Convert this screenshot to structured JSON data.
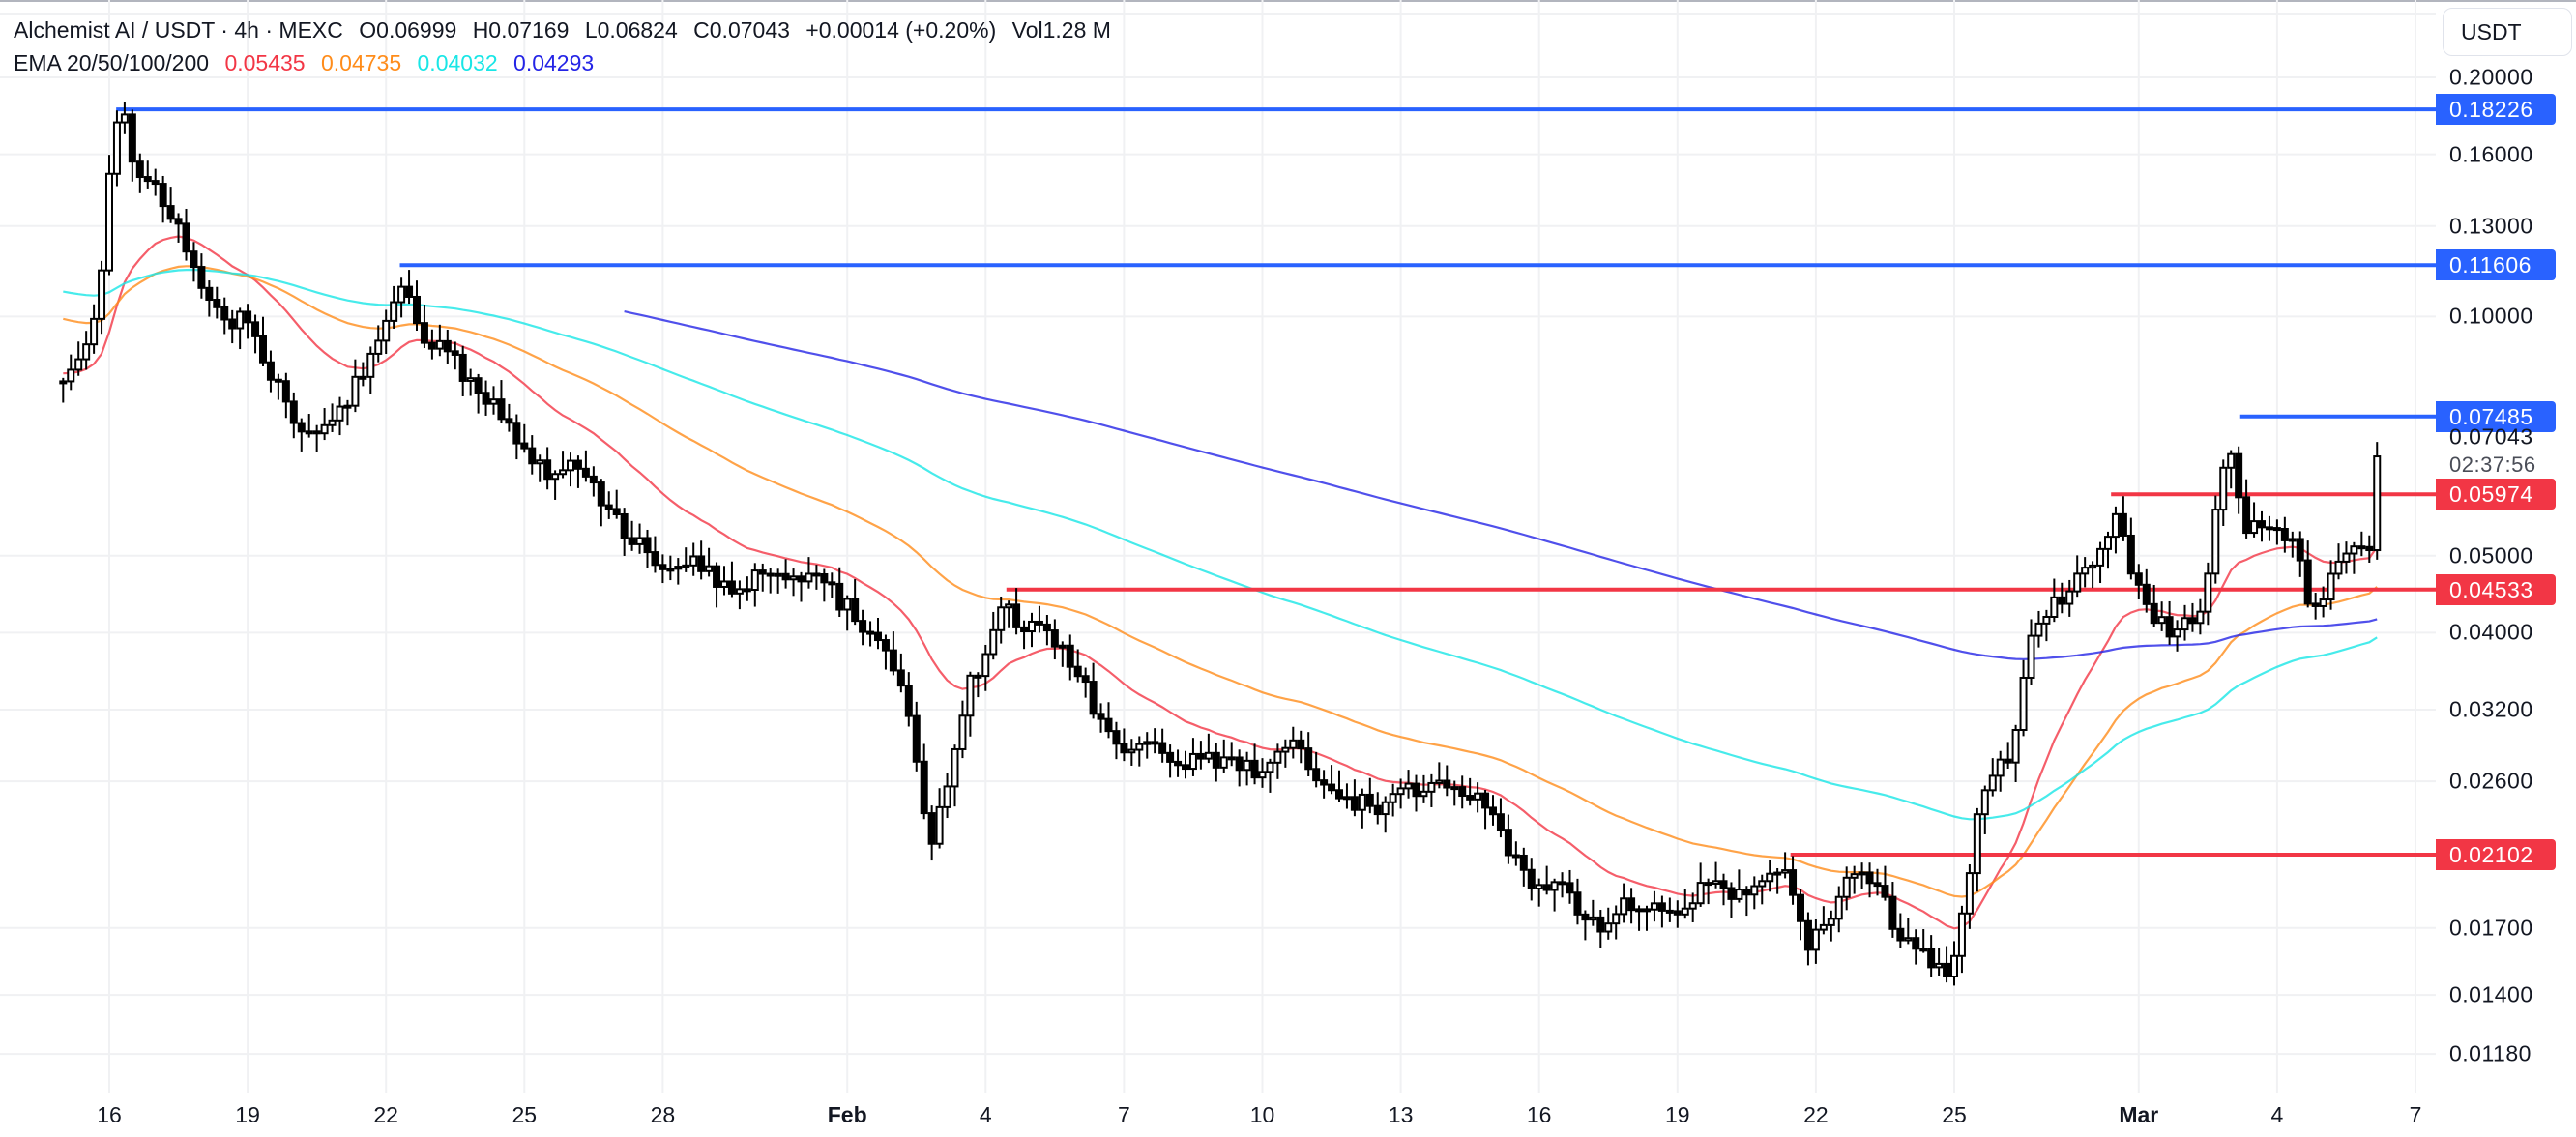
{
  "header": {
    "symbol": "Alchemist AI / USDT",
    "interval": "4h",
    "exchange": "MEXC",
    "open": "O0.06999",
    "high": "H0.07169",
    "low": "L0.06824",
    "close": "C0.07043",
    "change": "+0.00014 (+0.20%)",
    "volume": "Vol1.28 M"
  },
  "ema": {
    "label": "EMA 20/50/100/200",
    "values": [
      {
        "period": 20,
        "value": "0.05435",
        "color": "#f23645"
      },
      {
        "period": 50,
        "value": "0.04735",
        "color": "#ff8c1a"
      },
      {
        "period": 100,
        "value": "0.04032",
        "color": "#19e6e6"
      },
      {
        "period": 200,
        "value": "0.04293",
        "color": "#2424e6"
      }
    ]
  },
  "currency_button": "USDT",
  "price_axis": {
    "ticks": [
      "0.20000",
      "0.16000",
      "0.13000",
      "0.10000",
      "0.05000",
      "0.04000",
      "0.03200",
      "0.02600",
      "0.01700",
      "0.01400",
      "0.01180"
    ],
    "current_price": "0.07043",
    "countdown": "02:37:56"
  },
  "levels": [
    {
      "price": "0.18226",
      "color": "#2962ff",
      "start_date": "Jan 16"
    },
    {
      "price": "0.11606",
      "color": "#2962ff",
      "start_date": "Jan 22"
    },
    {
      "price": "0.07485",
      "color": "#2962ff",
      "start_date": "Mar 3"
    },
    {
      "price": "0.05974",
      "color": "#f23645",
      "start_date": "Feb 28"
    },
    {
      "price": "0.04533",
      "color": "#f23645",
      "start_date": "Feb 4"
    },
    {
      "price": "0.02102",
      "color": "#f23645",
      "start_date": "Feb 21"
    }
  ],
  "time_axis": {
    "labels": [
      {
        "text": "16",
        "bold": false
      },
      {
        "text": "19",
        "bold": false
      },
      {
        "text": "22",
        "bold": false
      },
      {
        "text": "25",
        "bold": false
      },
      {
        "text": "28",
        "bold": false
      },
      {
        "text": "Feb",
        "bold": true
      },
      {
        "text": "4",
        "bold": false
      },
      {
        "text": "7",
        "bold": false
      },
      {
        "text": "10",
        "bold": false
      },
      {
        "text": "13",
        "bold": false
      },
      {
        "text": "16",
        "bold": false
      },
      {
        "text": "19",
        "bold": false
      },
      {
        "text": "22",
        "bold": false
      },
      {
        "text": "25",
        "bold": false
      },
      {
        "text": "Mar",
        "bold": true
      },
      {
        "text": "4",
        "bold": false
      },
      {
        "text": "7",
        "bold": false
      }
    ]
  },
  "chart_data": {
    "type": "candlestick",
    "title": "Alchemist AI / USDT · 4h · MEXC",
    "xlabel": "",
    "ylabel": "USDT",
    "y_scale": "log",
    "ylim": [
      0.0112,
      0.212
    ],
    "x_ticks": [
      "Jan 16",
      "Jan 19",
      "Jan 22",
      "Jan 25",
      "Jan 28",
      "Feb 1",
      "Feb 4",
      "Feb 7",
      "Feb 10",
      "Feb 13",
      "Feb 16",
      "Feb 19",
      "Feb 22",
      "Feb 25",
      "Mar 1",
      "Mar 4",
      "Mar 7"
    ],
    "grid": true,
    "close_path": [
      [
        "Jan 15.0",
        0.085
      ],
      [
        "Jan 15.5",
        0.091
      ],
      [
        "Jan 15.8",
        0.112
      ],
      [
        "Jan 16.1",
        0.168
      ],
      [
        "Jan 16.3",
        0.178
      ],
      [
        "Jan 16.6",
        0.15
      ],
      [
        "Jan 17.2",
        0.14
      ],
      [
        "Jan 17.8",
        0.12
      ],
      [
        "Jan 18.3",
        0.1
      ],
      [
        "Jan 19.0",
        0.098
      ],
      [
        "Jan 19.5",
        0.085
      ],
      [
        "Jan 20.0",
        0.074
      ],
      [
        "Jan 20.6",
        0.072
      ],
      [
        "Jan 21.2",
        0.08
      ],
      [
        "Jan 22.0",
        0.098
      ],
      [
        "Jan 22.4",
        0.114
      ],
      [
        "Jan 22.7",
        0.096
      ],
      [
        "Jan 23.3",
        0.09
      ],
      [
        "Jan 24.0",
        0.081
      ],
      [
        "Jan 24.6",
        0.074
      ],
      [
        "Jan 25.3",
        0.064
      ],
      [
        "Jan 26.0",
        0.064
      ],
      [
        "Jan 26.6",
        0.06
      ],
      [
        "Jan 27.3",
        0.052
      ],
      [
        "Jan 28.0",
        0.049
      ],
      [
        "Jan 28.6",
        0.05
      ],
      [
        "Jan 29.3",
        0.045
      ],
      [
        "Jan 30.0",
        0.047
      ],
      [
        "Jan 30.6",
        0.046
      ],
      [
        "Jan 31.3",
        0.047
      ],
      [
        "Feb 1.0",
        0.043
      ],
      [
        "Feb 1.6",
        0.039
      ],
      [
        "Feb 2.0",
        0.036
      ],
      [
        "Feb 2.4",
        0.03
      ],
      [
        "Feb 2.8",
        0.022
      ],
      [
        "Feb 3.2",
        0.026
      ],
      [
        "Feb 3.6",
        0.034
      ],
      [
        "Feb 4.0",
        0.038
      ],
      [
        "Feb 4.4",
        0.043
      ],
      [
        "Feb 4.8",
        0.041
      ],
      [
        "Feb 5.4",
        0.04
      ],
      [
        "Feb 5.9",
        0.036
      ],
      [
        "Feb 6.4",
        0.032
      ],
      [
        "Feb 7.0",
        0.028
      ],
      [
        "Feb 7.6",
        0.029
      ],
      [
        "Feb 8.2",
        0.027
      ],
      [
        "Feb 8.8",
        0.028
      ],
      [
        "Feb 9.4",
        0.027
      ],
      [
        "Feb 10.0",
        0.027
      ],
      [
        "Feb 10.6",
        0.029
      ],
      [
        "Feb 11.2",
        0.026
      ],
      [
        "Feb 11.8",
        0.025
      ],
      [
        "Feb 12.4",
        0.024
      ],
      [
        "Feb 13.0",
        0.026
      ],
      [
        "Feb 13.6",
        0.025
      ],
      [
        "Feb 14.2",
        0.026
      ],
      [
        "Feb 14.8",
        0.024
      ],
      [
        "Feb 15.4",
        0.021
      ],
      [
        "Feb 16.0",
        0.019
      ],
      [
        "Feb 16.6",
        0.019
      ],
      [
        "Feb 17.2",
        0.017
      ],
      [
        "Feb 17.8",
        0.018
      ],
      [
        "Feb 18.4",
        0.018
      ],
      [
        "Feb 19.0",
        0.018
      ],
      [
        "Feb 19.6",
        0.019
      ],
      [
        "Feb 20.2",
        0.019
      ],
      [
        "Feb 20.8",
        0.019
      ],
      [
        "Feb 21.4",
        0.02
      ],
      [
        "Feb 21.8",
        0.016
      ],
      [
        "Feb 22.2",
        0.017
      ],
      [
        "Feb 22.6",
        0.0195
      ],
      [
        "Feb 23.0",
        0.02
      ],
      [
        "Feb 23.4",
        0.019
      ],
      [
        "Feb 23.8",
        0.0165
      ],
      [
        "Feb 24.2",
        0.016
      ],
      [
        "Feb 24.6",
        0.015
      ],
      [
        "Feb 24.9",
        0.0145
      ],
      [
        "Feb 25.2",
        0.018
      ],
      [
        "Feb 25.5",
        0.023
      ],
      [
        "Feb 25.8",
        0.026
      ],
      [
        "Feb 26.2",
        0.028
      ],
      [
        "Feb 26.6",
        0.038
      ],
      [
        "Feb 27.0",
        0.042
      ],
      [
        "Feb 27.4",
        0.045
      ],
      [
        "Feb 27.8",
        0.047
      ],
      [
        "Feb 28.2",
        0.052
      ],
      [
        "Feb 28.5",
        0.057
      ],
      [
        "Feb 28.8",
        0.048
      ],
      [
        "Mar 1.2",
        0.043
      ],
      [
        "Mar 1.6",
        0.04
      ],
      [
        "Mar 2.0",
        0.041
      ],
      [
        "Mar 2.4",
        0.043
      ],
      [
        "Mar 2.7",
        0.06
      ],
      [
        "Mar 3.0",
        0.068
      ],
      [
        "Mar 3.3",
        0.055
      ],
      [
        "Mar 3.7",
        0.053
      ],
      [
        "Mar 4.0",
        0.054
      ],
      [
        "Mar 4.4",
        0.052
      ],
      [
        "Mar 4.7",
        0.044
      ],
      [
        "Mar 5.0",
        0.045
      ],
      [
        "Mar 5.3",
        0.05
      ],
      [
        "Mar 5.7",
        0.05
      ],
      [
        "Mar 6.0",
        0.052
      ],
      [
        "Mar 6.2",
        0.0704
      ]
    ],
    "ema_series": [
      {
        "name": "EMA 20",
        "color": "#f23645",
        "last": 0.05435
      },
      {
        "name": "EMA 50",
        "color": "#ff8c1a",
        "last": 0.04735
      },
      {
        "name": "EMA 100",
        "color": "#19e6e6",
        "last": 0.04032
      },
      {
        "name": "EMA 200",
        "color": "#2424e6",
        "last": 0.04293
      }
    ],
    "horizontal_levels": [
      0.18226,
      0.11606,
      0.07485,
      0.05974,
      0.04533,
      0.02102
    ]
  }
}
